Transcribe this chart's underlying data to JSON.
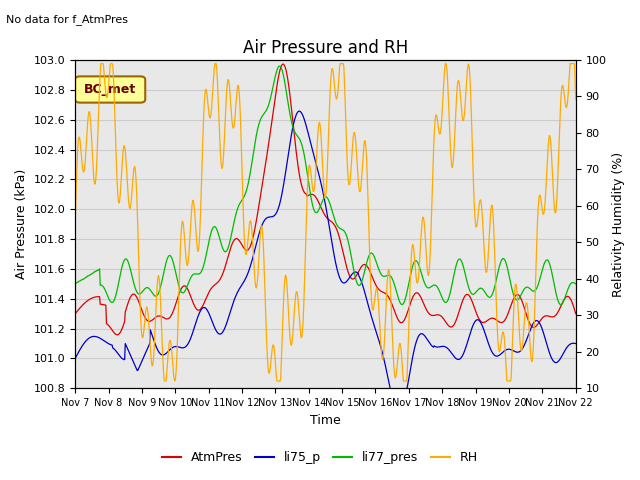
{
  "title": "Air Pressure and RH",
  "subtitle": "No data for f_AtmPres",
  "ylabel_left": "Air Pressure (kPa)",
  "ylabel_right": "Relativity Humidity (%)",
  "xlabel": "Time",
  "ylim_left": [
    100.8,
    103.0
  ],
  "ylim_right": [
    10,
    100
  ],
  "yticks_left": [
    100.8,
    101.0,
    101.2,
    101.4,
    101.6,
    101.8,
    102.0,
    102.2,
    102.4,
    102.6,
    102.8,
    103.0
  ],
  "yticks_right": [
    10,
    20,
    30,
    40,
    50,
    60,
    70,
    80,
    90,
    100
  ],
  "x_labels": [
    "Nov 7",
    "Nov 8",
    "Nov 9",
    "Nov 10",
    "Nov 11",
    "Nov 12",
    "Nov 13",
    "Nov 14",
    "Nov 15",
    "Nov 16",
    "Nov 17",
    "Nov 18",
    "Nov 19",
    "Nov 20",
    "Nov 21",
    "Nov 22"
  ],
  "grid_color": "#cccccc",
  "bg_color": "#e8e8e8",
  "colors": {
    "AtmPres": "#dd0000",
    "li75_p": "#0000cc",
    "li77_pres": "#00bb00",
    "RH": "#ffaa00"
  },
  "legend_label": "BC_met",
  "legend_box_color": "#ffff99",
  "legend_box_edge": "#996600"
}
